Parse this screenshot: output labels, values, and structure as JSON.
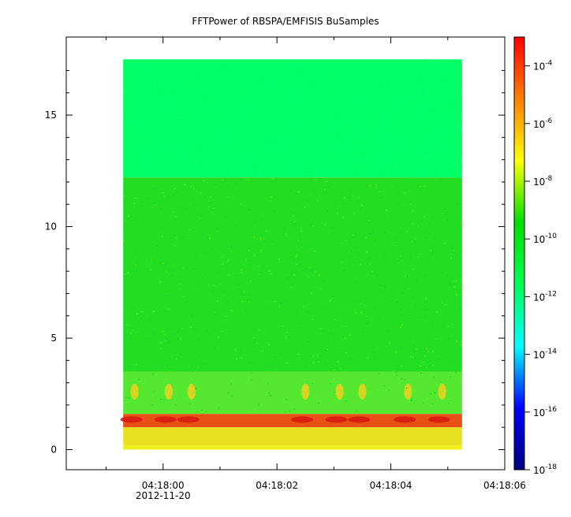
{
  "chart_data": {
    "type": "heatmap",
    "title": "FFTPower of RBSPA/EMFISIS  BuSamples",
    "xlabel": "",
    "ylabel": "",
    "x_ticks": [
      {
        "label": "04:18:00",
        "sublabel": "2012-11-20",
        "value": 0
      },
      {
        "label": "04:18:02",
        "value": 2
      },
      {
        "label": "04:18:04",
        "value": 4
      },
      {
        "label": "04:18:06",
        "value": 6
      }
    ],
    "x_minor_ticks": [
      -1,
      1,
      3,
      5
    ],
    "xlim": [
      -1.7,
      6.0
    ],
    "data_x_range": [
      -0.7,
      5.25
    ],
    "y_ticks": [
      0,
      5,
      10,
      15
    ],
    "ylim": [
      -0.9,
      18.5
    ],
    "data_y_range": [
      0,
      17.5
    ],
    "colorbar": {
      "scale": "log",
      "range": [
        1e-18,
        0.001
      ],
      "ticks": [
        {
          "base": "10",
          "exp": "-4",
          "value": 0.0001
        },
        {
          "base": "10",
          "exp": "-6",
          "value": 1e-06
        },
        {
          "base": "10",
          "exp": "-8",
          "value": 1e-08
        },
        {
          "base": "10",
          "exp": "-10",
          "value": 1e-10
        },
        {
          "base": "10",
          "exp": "-12",
          "value": 1e-12
        },
        {
          "base": "10",
          "exp": "-14",
          "value": 1e-14
        },
        {
          "base": "10",
          "exp": "-16",
          "value": 1e-16
        },
        {
          "base": "10",
          "exp": "-18",
          "value": 1e-18
        }
      ],
      "colormap": [
        "#000080",
        "#0000ff",
        "#00ffff",
        "#00ff55",
        "#00e000",
        "#ffff00",
        "#ff8000",
        "#ff0000"
      ]
    },
    "bands": [
      {
        "y_range": [
          12.2,
          17.5
        ],
        "color": "#00ff66"
      },
      {
        "y_range": [
          3.5,
          12.2
        ],
        "color": "#22dd22"
      },
      {
        "y_range": [
          1.6,
          3.5
        ],
        "color": "#55e830"
      },
      {
        "y_range": [
          1.0,
          1.6
        ],
        "color": "#e85018"
      },
      {
        "y_range": [
          0.2,
          1.0
        ],
        "color": "#e8e020"
      },
      {
        "y_range": [
          0.0,
          0.2
        ],
        "color": "#f0f020"
      }
    ],
    "bursts_x": [
      -0.5,
      0.1,
      0.5,
      2.5,
      3.1,
      3.5,
      4.3,
      4.9
    ]
  }
}
